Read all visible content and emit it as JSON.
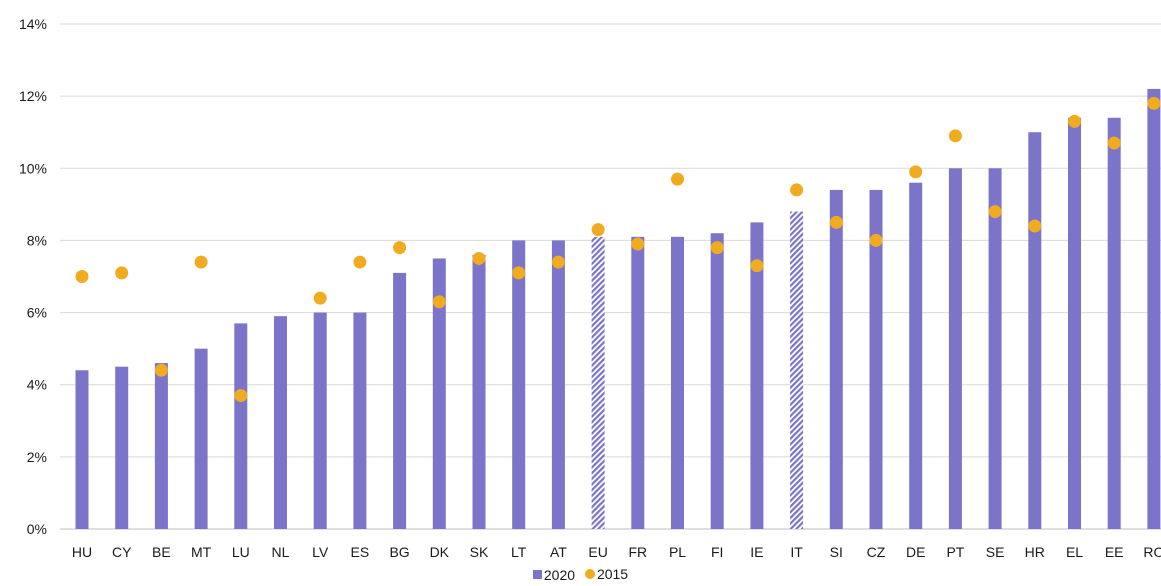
{
  "chart_data": {
    "type": "bar",
    "categories": [
      "HU",
      "CY",
      "BE",
      "MT",
      "LU",
      "NL",
      "LV",
      "ES",
      "BG",
      "DK",
      "SK",
      "LT",
      "AT",
      "EU",
      "FR",
      "PL",
      "FI",
      "IE",
      "IT",
      "SI",
      "CZ",
      "DE",
      "PT",
      "SE",
      "HR",
      "EL",
      "EE",
      "RO"
    ],
    "highlight_categories": [
      "EU",
      "IT"
    ],
    "series": [
      {
        "name": "2020",
        "kind": "bar",
        "color": "#7b74c9",
        "values": [
          4.4,
          4.5,
          4.6,
          5.0,
          5.7,
          5.9,
          6.0,
          6.0,
          7.1,
          7.5,
          7.6,
          8.0,
          8.0,
          8.1,
          8.1,
          8.1,
          8.2,
          8.5,
          8.8,
          9.4,
          9.4,
          9.6,
          10.0,
          10.0,
          11.0,
          11.4,
          11.4,
          12.2
        ]
      },
      {
        "name": "2015",
        "kind": "dot",
        "color": "#f0ab1f",
        "values": [
          7.0,
          7.1,
          4.4,
          7.4,
          3.7,
          null,
          6.4,
          7.4,
          7.8,
          6.3,
          7.5,
          7.1,
          7.4,
          8.3,
          7.9,
          9.7,
          7.8,
          7.3,
          9.4,
          8.5,
          8.0,
          9.9,
          10.9,
          8.8,
          8.4,
          11.3,
          10.7,
          11.8
        ]
      }
    ],
    "yticks": [
      "0%",
      "2%",
      "4%",
      "6%",
      "8%",
      "10%",
      "12%",
      "14%"
    ],
    "ylim": [
      0,
      14
    ],
    "grid": true,
    "legend_position": "bottom-center",
    "title": "",
    "xlabel": "",
    "ylabel": ""
  }
}
